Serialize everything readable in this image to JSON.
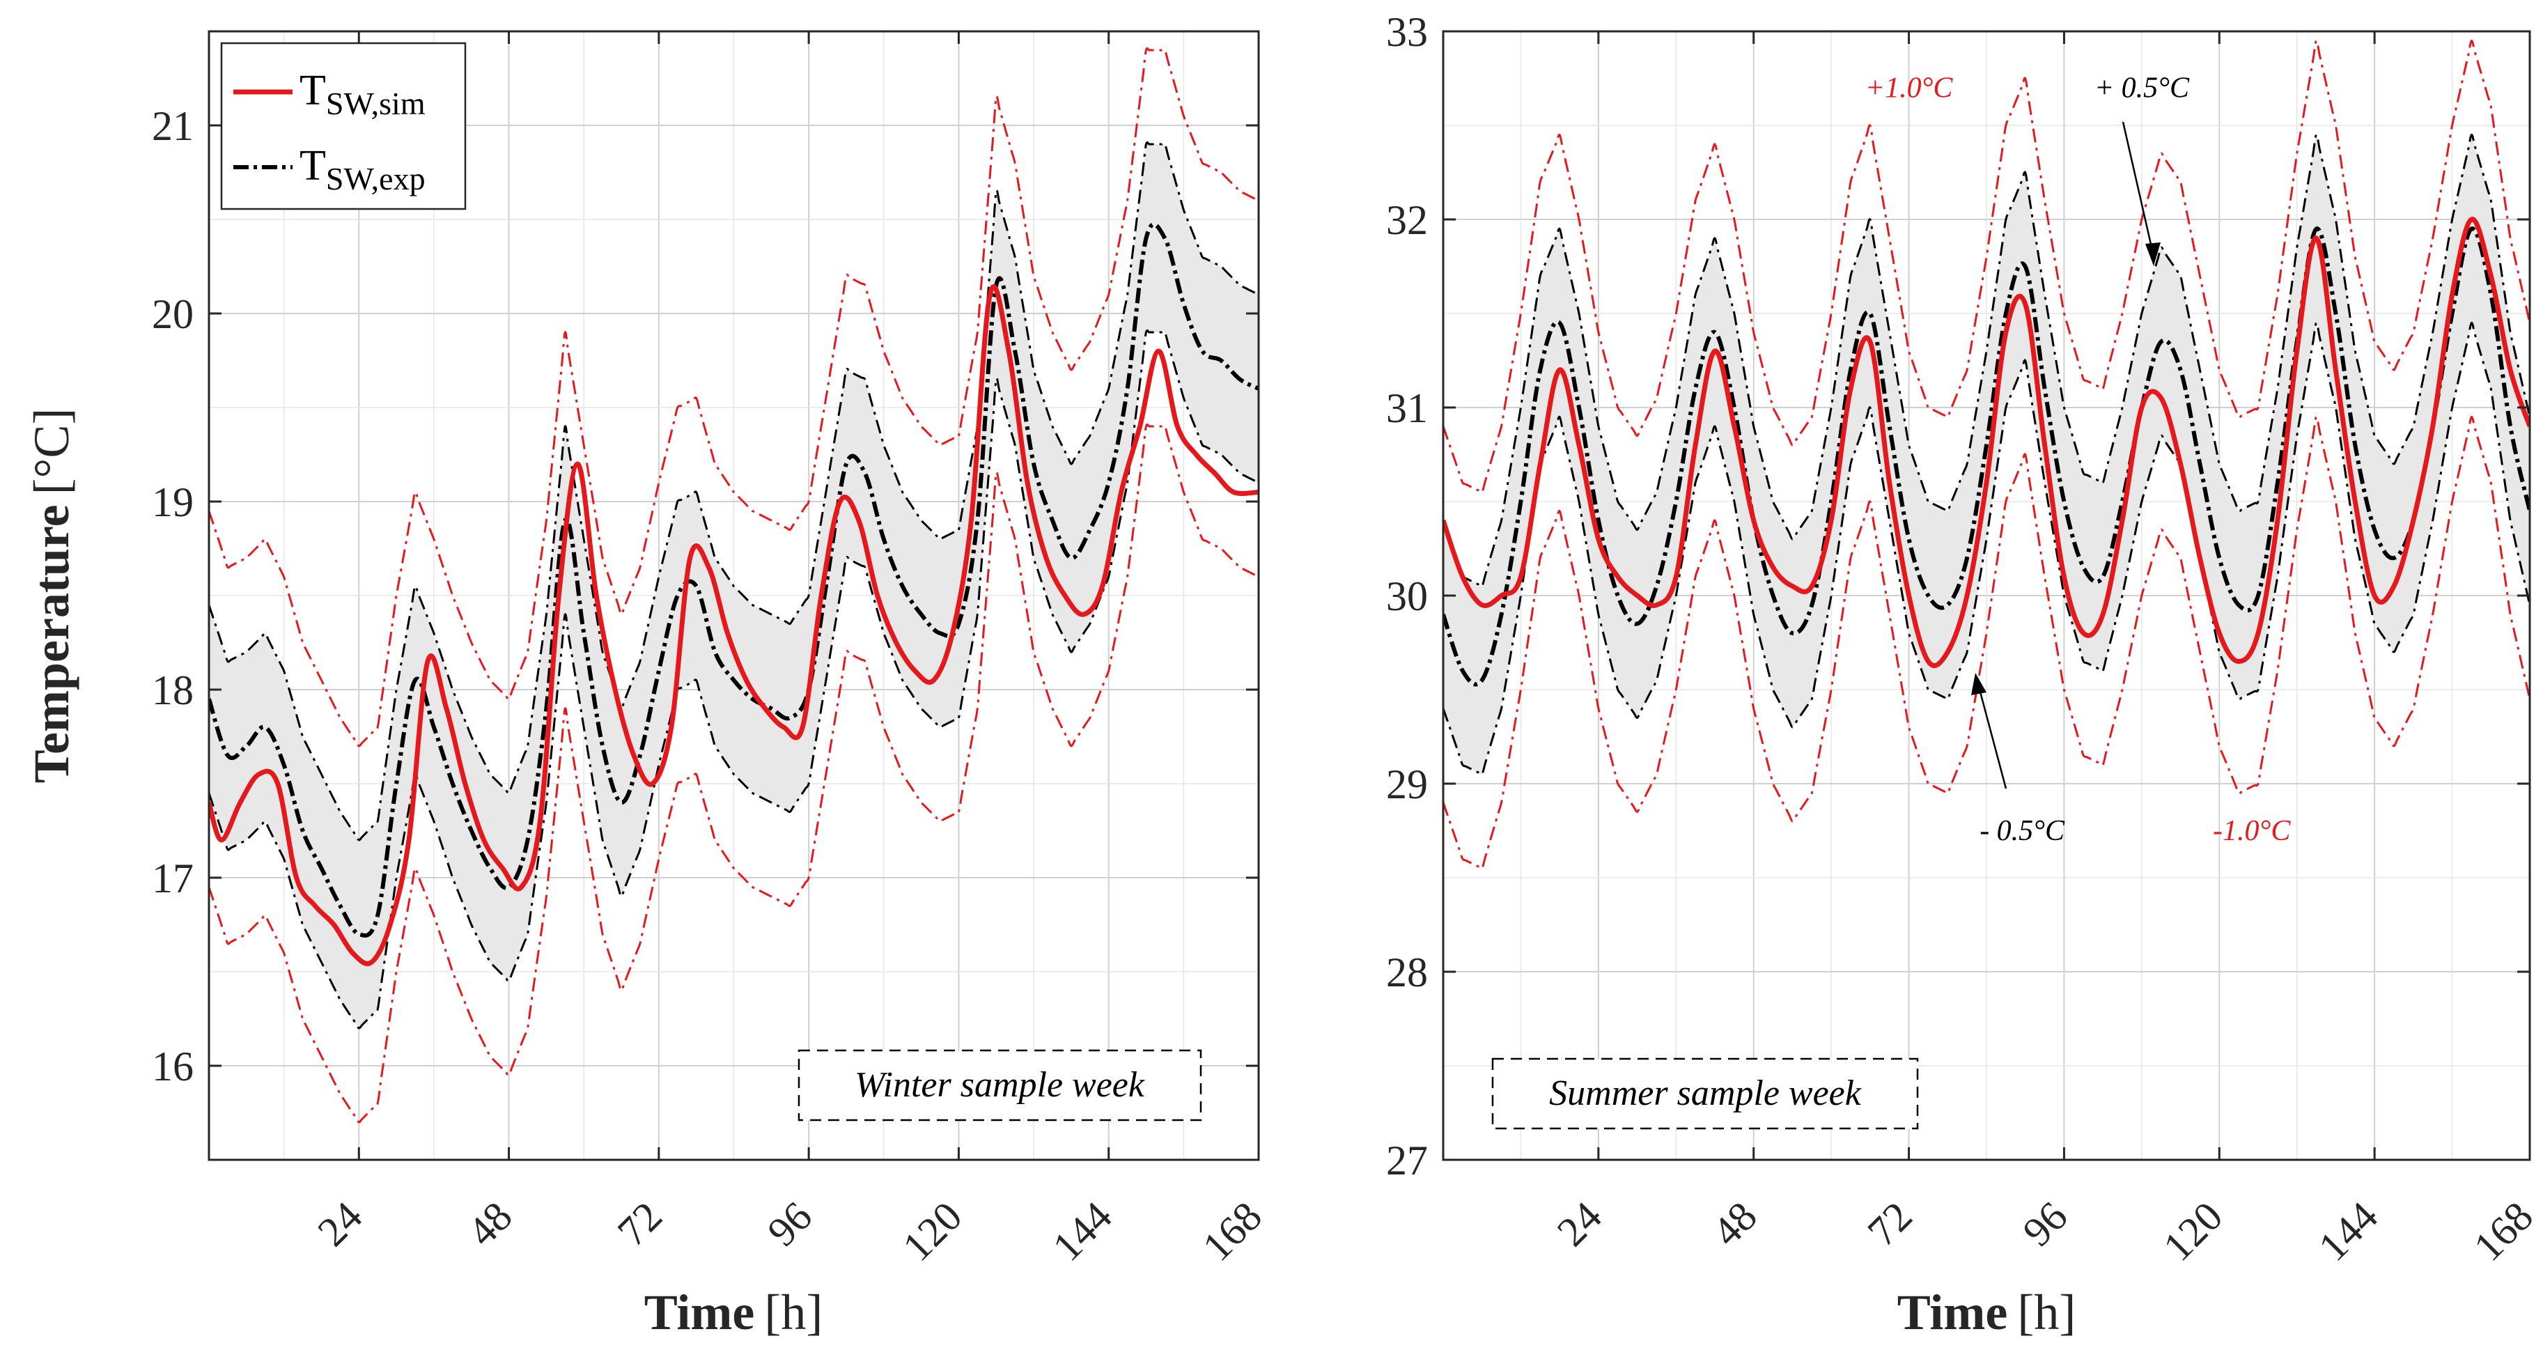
{
  "chart_data": [
    {
      "type": "line",
      "panel": "left",
      "xlabel_bold": "Time",
      "xlabel_unit": "[h]",
      "ylabel_bold": "Temperature",
      "ylabel_unit": "[°C]",
      "xlim": [
        0,
        168
      ],
      "ylim": [
        15.5,
        21.5
      ],
      "xticks": [
        24,
        48,
        72,
        96,
        120,
        144,
        168
      ],
      "yticks": [
        16,
        17,
        18,
        19,
        20,
        21
      ],
      "grid": true,
      "sample_label": "Winter sample week",
      "legend": {
        "position": "top-left",
        "entries": [
          {
            "main": "T",
            "sub": "SW,sim",
            "style": "red-solid"
          },
          {
            "main": "T",
            "sub": "SW,exp",
            "style": "black-dashdot"
          }
        ]
      },
      "bands": [
        0.5,
        1.0
      ],
      "series": [
        {
          "name": "T_SW,exp",
          "x": [
            0,
            3,
            6,
            9,
            12,
            15,
            18,
            21,
            24,
            27,
            30,
            33,
            36,
            39,
            42,
            45,
            48,
            51,
            54,
            57,
            60,
            63,
            66,
            69,
            72,
            75,
            78,
            81,
            84,
            87,
            90,
            93,
            96,
            99,
            102,
            105,
            108,
            111,
            114,
            117,
            120,
            123,
            126,
            129,
            132,
            135,
            138,
            141,
            144,
            147,
            150,
            153,
            156,
            159,
            162,
            165,
            168
          ],
          "values": [
            17.95,
            17.65,
            17.7,
            17.8,
            17.6,
            17.25,
            17.05,
            16.85,
            16.7,
            16.8,
            17.5,
            18.05,
            17.8,
            17.5,
            17.25,
            17.05,
            16.95,
            17.2,
            17.9,
            18.9,
            18.3,
            17.7,
            17.4,
            17.65,
            18.1,
            18.5,
            18.55,
            18.2,
            18.05,
            17.95,
            17.9,
            17.85,
            18.0,
            18.6,
            19.2,
            19.15,
            18.8,
            18.55,
            18.4,
            18.3,
            18.35,
            18.9,
            20.15,
            19.8,
            19.2,
            18.9,
            18.7,
            18.85,
            19.1,
            19.6,
            20.4,
            20.4,
            20.05,
            19.8,
            19.75,
            19.65,
            19.6
          ]
        },
        {
          "name": "T_SW,sim",
          "x": [
            0,
            2,
            5,
            8,
            11,
            14,
            17,
            20,
            23,
            26,
            29,
            32,
            35,
            38,
            41,
            44,
            47,
            50,
            53,
            56,
            59,
            62,
            65,
            68,
            71,
            74,
            77,
            80,
            83,
            86,
            89,
            92,
            95,
            98,
            101,
            104,
            107,
            110,
            113,
            116,
            119,
            122,
            125,
            128,
            131,
            134,
            137,
            140,
            143,
            146,
            149,
            152,
            155,
            158,
            161,
            164,
            168
          ],
          "values": [
            17.4,
            17.2,
            17.4,
            17.55,
            17.5,
            17.0,
            16.85,
            16.75,
            16.6,
            16.55,
            16.75,
            17.2,
            18.15,
            17.9,
            17.5,
            17.2,
            17.05,
            16.95,
            17.3,
            18.5,
            19.2,
            18.5,
            18.0,
            17.65,
            17.5,
            17.8,
            18.7,
            18.65,
            18.3,
            18.05,
            17.9,
            17.8,
            17.8,
            18.5,
            19.0,
            18.9,
            18.5,
            18.25,
            18.1,
            18.05,
            18.3,
            18.9,
            20.1,
            19.8,
            19.1,
            18.7,
            18.5,
            18.4,
            18.55,
            19.05,
            19.4,
            19.8,
            19.4,
            19.25,
            19.15,
            19.05,
            19.05
          ]
        }
      ]
    },
    {
      "type": "line",
      "panel": "right",
      "xlabel_bold": "Time",
      "xlabel_unit": "[h]",
      "xlim": [
        0,
        168
      ],
      "ylim": [
        27,
        33
      ],
      "xticks": [
        24,
        48,
        72,
        96,
        120,
        144,
        168
      ],
      "yticks": [
        27,
        28,
        29,
        30,
        31,
        32,
        33
      ],
      "grid": true,
      "sample_label": "Summer sample week",
      "bands": [
        0.5,
        1.0
      ],
      "annotations": [
        {
          "text": "+1.0°C",
          "color": "#e5191c",
          "x": 72,
          "y": 32.65
        },
        {
          "text": "+ 0.5°C",
          "color": "#000000",
          "x": 108,
          "y": 32.65
        },
        {
          "text": "- 0.5°C",
          "color": "#000000",
          "x": 89.5,
          "y": 28.7
        },
        {
          "text": "-1.0°C",
          "color": "#e5191c",
          "x": 125,
          "y": 28.7
        }
      ],
      "series": [
        {
          "name": "T_SW,exp",
          "x": [
            0,
            3,
            6,
            9,
            12,
            15,
            18,
            21,
            24,
            27,
            30,
            33,
            36,
            39,
            42,
            45,
            48,
            51,
            54,
            57,
            60,
            63,
            66,
            69,
            72,
            75,
            78,
            81,
            84,
            87,
            90,
            93,
            96,
            99,
            102,
            105,
            108,
            111,
            114,
            117,
            120,
            123,
            126,
            129,
            132,
            135,
            138,
            141,
            144,
            147,
            150,
            153,
            156,
            159,
            162,
            165,
            168
          ],
          "values": [
            29.9,
            29.6,
            29.55,
            29.9,
            30.5,
            31.2,
            31.45,
            31.0,
            30.4,
            30.0,
            29.85,
            30.05,
            30.5,
            31.1,
            31.4,
            31.0,
            30.4,
            30.0,
            29.8,
            29.95,
            30.5,
            31.2,
            31.5,
            30.9,
            30.3,
            30.0,
            29.95,
            30.2,
            30.8,
            31.5,
            31.75,
            31.1,
            30.5,
            30.15,
            30.1,
            30.5,
            31.0,
            31.35,
            31.2,
            30.7,
            30.2,
            29.95,
            30.0,
            30.6,
            31.35,
            31.95,
            31.5,
            30.8,
            30.35,
            30.2,
            30.4,
            30.9,
            31.5,
            31.95,
            31.6,
            30.9,
            30.45
          ]
        },
        {
          "name": "T_SW,sim",
          "x": [
            0,
            3,
            6,
            9,
            12,
            15,
            18,
            21,
            24,
            27,
            30,
            33,
            36,
            39,
            42,
            45,
            48,
            51,
            54,
            57,
            60,
            63,
            66,
            69,
            72,
            75,
            78,
            81,
            84,
            87,
            90,
            93,
            96,
            99,
            102,
            105,
            108,
            111,
            114,
            117,
            120,
            123,
            126,
            129,
            132,
            135,
            138,
            141,
            144,
            147,
            150,
            153,
            156,
            159,
            162,
            165,
            168
          ],
          "values": [
            30.4,
            30.1,
            29.95,
            30.0,
            30.1,
            30.7,
            31.2,
            30.8,
            30.3,
            30.1,
            30.0,
            29.95,
            30.1,
            30.8,
            31.3,
            30.9,
            30.4,
            30.15,
            30.05,
            30.05,
            30.4,
            31.1,
            31.35,
            30.6,
            30.0,
            29.65,
            29.7,
            30.0,
            30.6,
            31.4,
            31.55,
            30.8,
            30.1,
            29.8,
            29.9,
            30.4,
            31.0,
            31.05,
            30.7,
            30.2,
            29.8,
            29.65,
            29.8,
            30.4,
            31.3,
            31.9,
            31.2,
            30.5,
            30.0,
            30.05,
            30.4,
            30.9,
            31.6,
            32.0,
            31.7,
            31.2,
            30.9
          ]
        }
      ]
    }
  ]
}
